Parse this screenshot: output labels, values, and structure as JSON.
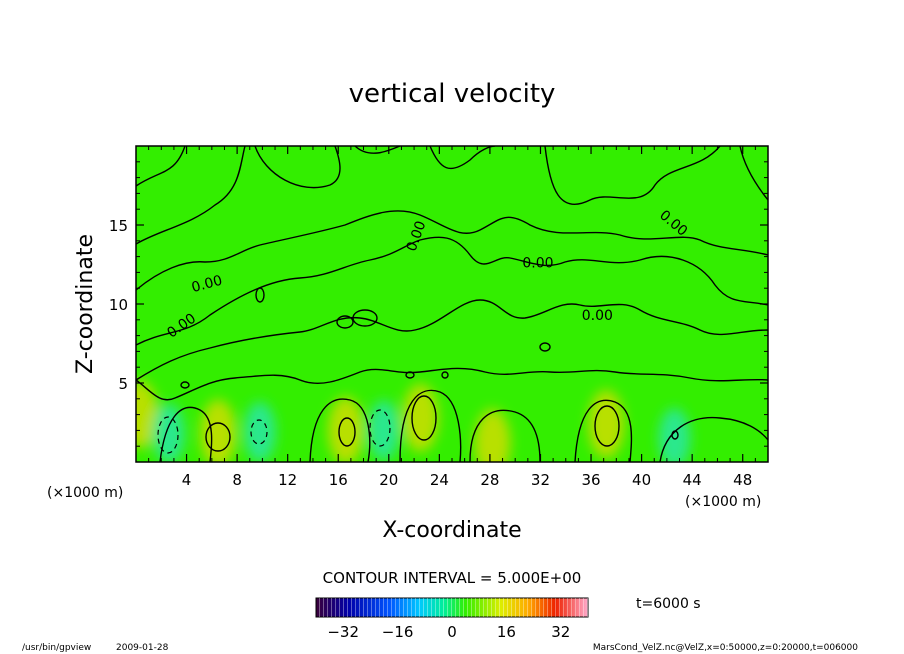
{
  "chart_data": {
    "type": "heatmap",
    "title": "vertical velocity",
    "xlabel": "X-coordinate",
    "ylabel": "Z-coordinate",
    "x_unit": "(×1000 m)",
    "y_unit": "(×1000 m)",
    "xlim": [
      0,
      50
    ],
    "ylim": [
      0,
      20
    ],
    "x_ticks": [
      4,
      8,
      12,
      16,
      20,
      24,
      28,
      32,
      36,
      40,
      44,
      48
    ],
    "y_ticks": [
      5,
      10,
      15
    ],
    "contour_interval_text": "CONTOUR INTERVAL = 5.000E+00",
    "contour_labels": [
      {
        "text": "0.00",
        "x": 5.7,
        "y": 11.0,
        "angle": -15
      },
      {
        "text": "0.00",
        "x": 3.8,
        "y": 8.4,
        "angle": -35
      },
      {
        "text": "0.00",
        "x": 22.5,
        "y": 14.2,
        "angle": -70
      },
      {
        "text": "0.00",
        "x": 31.8,
        "y": 12.3,
        "angle": 0
      },
      {
        "text": "0.00",
        "x": 36.5,
        "y": 9.0,
        "angle": 0
      },
      {
        "text": "0.00",
        "x": 42.3,
        "y": 14.9,
        "angle": 40
      }
    ],
    "colorbar": {
      "range": [
        -40,
        40
      ],
      "tick_values": [
        -32,
        -16,
        0,
        16,
        32
      ],
      "tick_labels": [
        "−32",
        "−16",
        "0",
        "16",
        "32"
      ]
    },
    "updraft_cores": [
      {
        "x": 0.3,
        "z": 3.0
      },
      {
        "x": 6.5,
        "z": 1.8
      },
      {
        "x": 16.6,
        "z": 2.0
      },
      {
        "x": 22.5,
        "z": 2.8
      },
      {
        "x": 28.2,
        "z": 1.2
      },
      {
        "x": 37.2,
        "z": 2.4
      }
    ],
    "downdraft_cores": [
      {
        "x": 2.6,
        "z": 1.8
      },
      {
        "x": 9.8,
        "z": 1.9
      },
      {
        "x": 19.6,
        "z": 2.0
      },
      {
        "x": 42.6,
        "z": 1.5
      }
    ],
    "colors": {
      "background_field": "#33ee00",
      "updraft": "#b8e000",
      "downdraft": "#2ae88c",
      "contour": "#000000"
    }
  },
  "annotations": {
    "time": "t=6000 s",
    "footer_left_path": "/usr/bin/gpview",
    "footer_left_date": "2009-01-28",
    "footer_right": "MarsCond_VelZ.nc@VelZ,x=0:50000,z=0:20000,t=006000"
  }
}
